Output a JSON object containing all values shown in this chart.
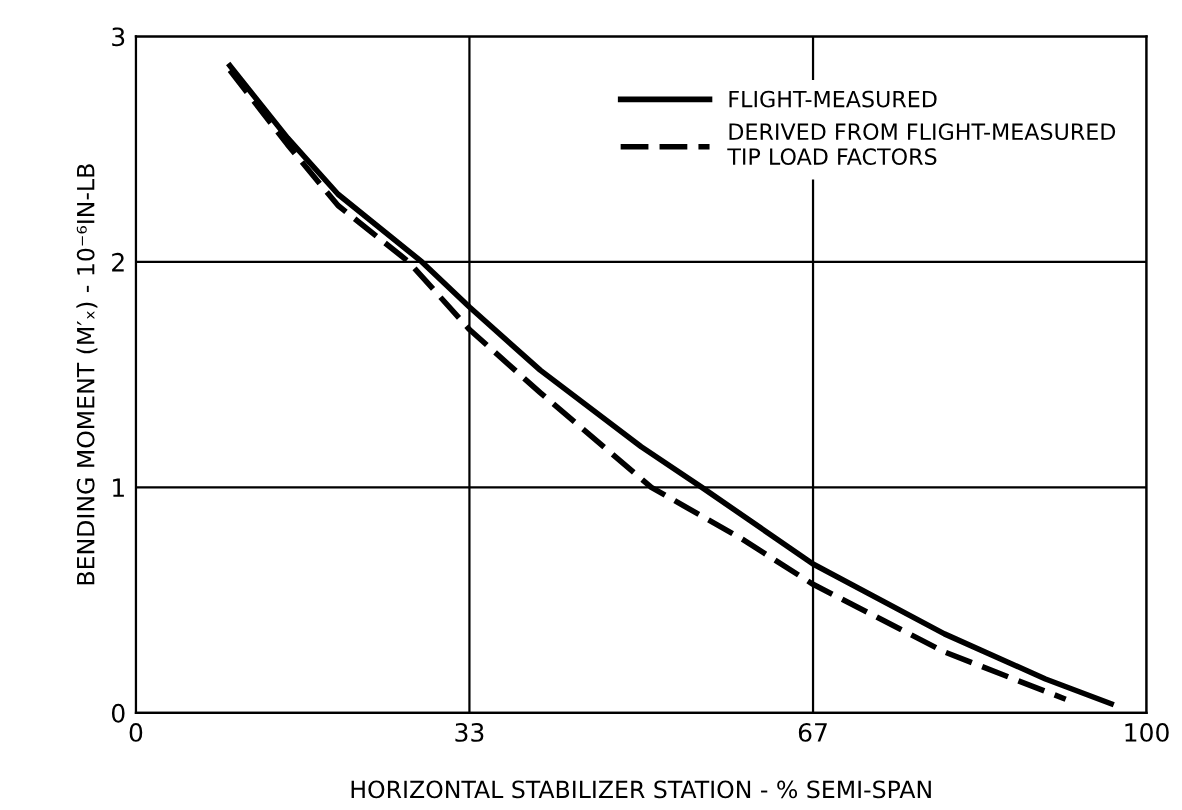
{
  "chart_data": {
    "type": "line",
    "xlabel": "HORIZONTAL STABILIZER STATION - % SEMI-SPAN",
    "ylabel": "BENDING MOMENT (M′ₓ) - 10⁻⁶IN-LB",
    "xlim": [
      0,
      100
    ],
    "xticks": [
      0,
      33,
      67,
      100
    ],
    "ylim": [
      0,
      3
    ],
    "yticks": [
      0,
      1,
      2,
      3
    ],
    "grid": true,
    "legend": "top right",
    "series": [
      {
        "name": "FLIGHT-MEASURED",
        "color": "#000000",
        "line_style": "solid",
        "x": [
          9.3,
          15,
          20,
          28.3,
          33,
          40,
          50,
          56,
          67,
          80,
          90,
          96.5
        ],
        "values": [
          2.87,
          2.55,
          2.3,
          2.0,
          1.8,
          1.52,
          1.18,
          1.0,
          0.66,
          0.35,
          0.15,
          0.04
        ]
      },
      {
        "name": "DERIVED FROM FLIGHT-MEASURED\nTIP LOAD FACTORS",
        "color": "#000000",
        "line_style": "dashed",
        "x": [
          9.3,
          15,
          20,
          27,
          33,
          40,
          51,
          60,
          67,
          80,
          92
        ],
        "values": [
          2.85,
          2.52,
          2.25,
          2.0,
          1.7,
          1.42,
          1.0,
          0.77,
          0.57,
          0.27,
          0.06
        ]
      }
    ]
  }
}
